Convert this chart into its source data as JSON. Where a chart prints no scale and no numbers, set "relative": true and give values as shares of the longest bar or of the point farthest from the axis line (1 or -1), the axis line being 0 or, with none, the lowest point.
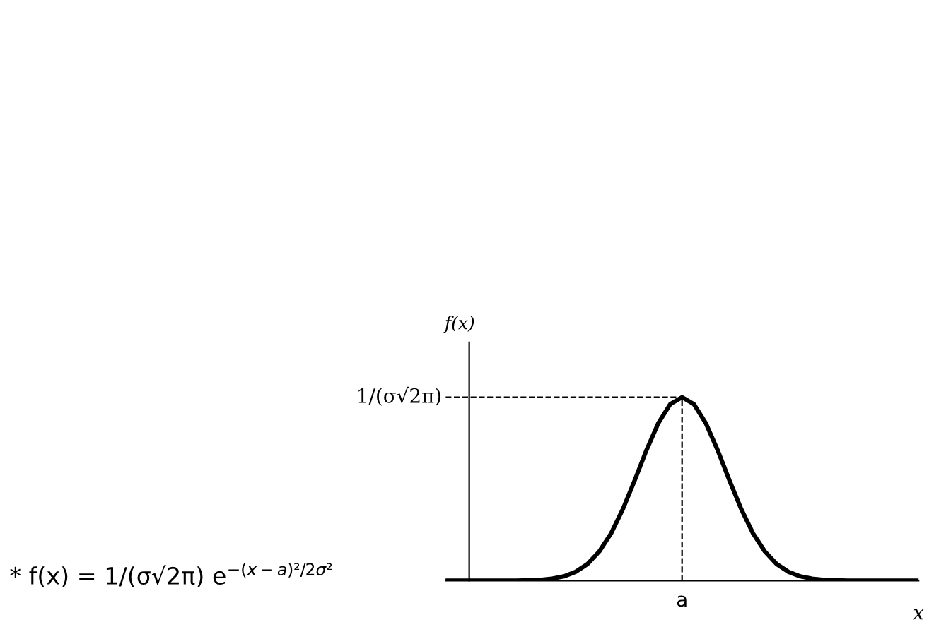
{
  "chart_data": {
    "type": "line",
    "relative": true,
    "xlabel": "x",
    "ylabel": "f(x)",
    "color": "#000000",
    "line_style": "solid",
    "marker": "none",
    "legend": false,
    "categories": [
      null,
      null,
      null,
      null,
      null,
      null,
      null,
      null,
      null,
      null,
      null,
      null,
      null,
      null,
      null,
      null,
      null,
      null,
      null,
      null,
      null,
      null,
      null,
      null,
      null,
      null,
      null,
      null,
      null,
      null,
      null,
      null,
      null,
      null,
      null,
      null,
      null,
      null,
      null,
      null,
      null
    ],
    "values": [
      0,
      0,
      0,
      0,
      0,
      0,
      0,
      0.002,
      0.004,
      0.011,
      0.023,
      0.048,
      0.09,
      0.159,
      0.258,
      0.391,
      0.548,
      0.713,
      0.86,
      0.963,
      1,
      0.963,
      0.86,
      0.713,
      0.548,
      0.391,
      0.258,
      0.159,
      0.09,
      0.048,
      0.023,
      0.011,
      0.004,
      0.002,
      0,
      0,
      0,
      0,
      0,
      0,
      0
    ],
    "ref_lines": [
      {
        "axis": "y",
        "value": 1,
        "label": "1/(σ√2π)",
        "line_style": "dashed",
        "color": "#000000"
      }
    ],
    "annotations": [
      "a",
      "* f(x) = 1/(σ√2π) e$^{−(x−a)²/2σ²}$"
    ]
  }
}
